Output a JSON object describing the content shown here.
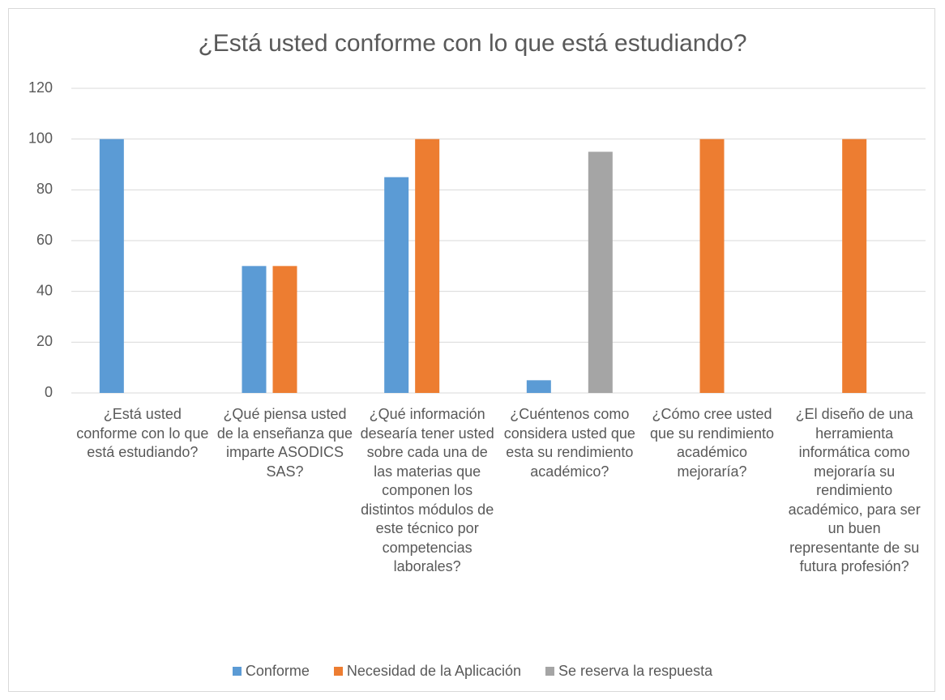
{
  "chart_data": {
    "type": "bar",
    "title": "¿Está usted conforme con lo que está estudiando?",
    "categories": [
      "¿Está usted conforme con lo que está estudiando?",
      "¿Qué piensa usted de la enseñanza que imparte ASODICS SAS?",
      "¿Qué información desearía tener usted sobre cada una de las materias que componen los distintos módulos de este técnico por competencias laborales?",
      "¿Cuéntenos como considera usted que esta su rendimiento académico?",
      "¿Cómo cree usted que su rendimiento académico mejoraría?",
      "¿El diseño de una herramienta informática como mejoraría su rendimiento académico, para ser un buen representante de su futura profesión?"
    ],
    "series": [
      {
        "name": "Conforme",
        "color": "#5b9bd5",
        "values": [
          100,
          50,
          85,
          5,
          0,
          0
        ]
      },
      {
        "name": "Necesidad de la Aplicación",
        "color": "#ed7d31",
        "values": [
          0,
          50,
          100,
          0,
          100,
          100
        ]
      },
      {
        "name": "Se reserva la respuesta",
        "color": "#a5a5a5",
        "values": [
          0,
          0,
          0,
          95,
          0,
          0
        ]
      }
    ],
    "ylim": [
      0,
      120
    ],
    "yticks": [
      0,
      20,
      40,
      60,
      80,
      100,
      120
    ],
    "grid": true,
    "legend": "bottom"
  }
}
